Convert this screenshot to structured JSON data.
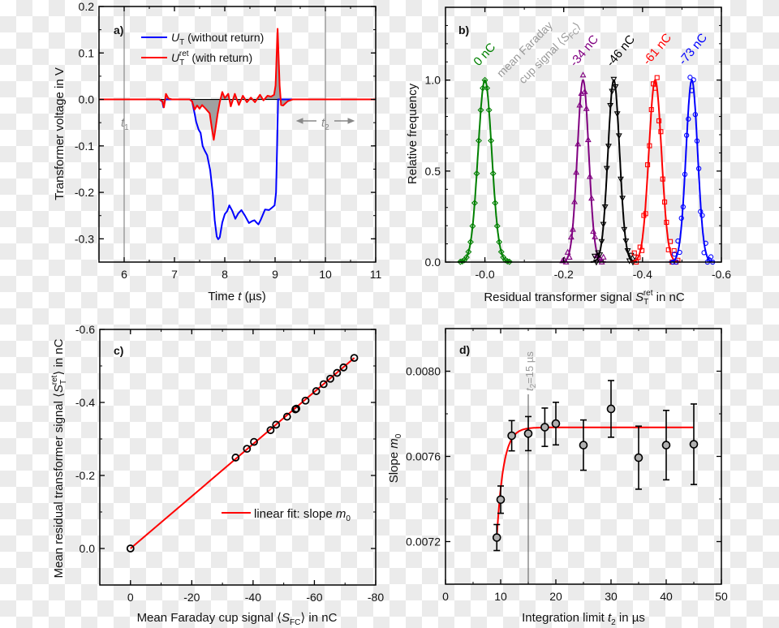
{
  "chart_data": [
    {
      "panel_label": "a)",
      "type": "line",
      "xlabel": {
        "pre": "Time ",
        "var": "t",
        "post": " (µs)"
      },
      "ylabel": "Transformer voltage in V",
      "xlim": [
        5.5,
        11
      ],
      "ylim": [
        -0.35,
        0.2
      ],
      "xticks": [
        6,
        7,
        8,
        9,
        10,
        11
      ],
      "xtick_labels": [
        "6",
        "7",
        "8",
        "9",
        "10",
        "11"
      ],
      "yticks": [
        -0.3,
        -0.2,
        -0.1,
        0.0,
        0.1,
        0.2
      ],
      "ytick_labels": [
        "-0.3",
        "-0.2",
        "-0.1",
        "0.0",
        "0.1",
        "0.2"
      ],
      "grid": false,
      "legend_position": "top-left",
      "series": [
        {
          "name": {
            "var": "U",
            "sub": "T",
            "sup": "",
            "text": " (without return)"
          },
          "color": "#0000ff",
          "x": [
            5.5,
            6.7,
            6.76,
            6.78,
            6.82,
            7.3,
            7.35,
            7.4,
            7.43,
            7.48,
            7.52,
            7.56,
            7.6,
            7.65,
            7.71,
            7.76,
            7.8,
            7.84,
            7.87,
            7.9,
            7.95,
            8.0,
            8.05,
            8.09,
            8.15,
            8.21,
            8.27,
            8.33,
            8.4,
            8.48,
            8.54,
            8.59,
            8.63,
            8.67,
            8.72,
            8.8,
            8.88,
            8.95,
            8.99,
            9.02,
            9.04,
            9.06,
            9.1,
            11
          ],
          "y": [
            0,
            0,
            -0.005,
            -0.017,
            0,
            0,
            -0.004,
            -0.03,
            -0.048,
            -0.065,
            -0.072,
            -0.1,
            -0.11,
            -0.12,
            -0.152,
            -0.2,
            -0.26,
            -0.295,
            -0.301,
            -0.297,
            -0.265,
            -0.247,
            -0.24,
            -0.228,
            -0.24,
            -0.257,
            -0.245,
            -0.238,
            -0.25,
            -0.266,
            -0.262,
            -0.26,
            -0.265,
            -0.269,
            -0.258,
            -0.237,
            -0.238,
            -0.232,
            -0.228,
            -0.2,
            -0.1,
            0,
            0,
            0
          ]
        },
        {
          "name": {
            "var": "U",
            "sub": "T",
            "sup": "ret",
            "text": " (with return)"
          },
          "color": "#ff0000",
          "x": [
            5.5,
            6.7,
            6.76,
            6.79,
            6.83,
            6.88,
            6.95,
            7.3,
            7.35,
            7.4,
            7.45,
            7.5,
            7.55,
            7.62,
            7.7,
            7.74,
            7.78,
            7.82,
            7.86,
            7.9,
            7.95,
            8.0,
            8.07,
            8.12,
            8.2,
            8.28,
            8.36,
            8.44,
            8.52,
            8.6,
            8.7,
            8.77,
            8.85,
            8.92,
            8.98,
            9.01,
            9.05,
            9.09,
            9.12,
            9.16,
            9.25,
            9.35,
            11
          ],
          "y": [
            0,
            0,
            -0.004,
            -0.017,
            0.012,
            0.002,
            0,
            0,
            -0.004,
            -0.022,
            -0.013,
            -0.02,
            -0.012,
            -0.02,
            -0.03,
            -0.06,
            -0.087,
            -0.06,
            -0.03,
            -0.006,
            0.016,
            0.003,
            0.012,
            -0.015,
            0.012,
            -0.012,
            0.008,
            -0.006,
            0.004,
            -0.006,
            0.01,
            -0.002,
            0.008,
            0.006,
            0.01,
            0.03,
            0.152,
            0.03,
            -0.012,
            -0.013,
            -0.004,
            0,
            0
          ]
        }
      ],
      "vertical_lines": [
        6,
        10
      ],
      "annotations": {
        "t1": {
          "var": "t",
          "sub": "1"
        },
        "t2": {
          "var": "t",
          "sub": "2"
        }
      },
      "fill_color": "#a0a0a0"
    },
    {
      "panel_label": "b)",
      "type": "scatter",
      "xlabel": {
        "pre": "Residual transformer signal ",
        "var": "S",
        "sub": "T",
        "sup": "ret",
        "post": " in nC"
      },
      "ylabel": "Relative frequency",
      "xlim": [
        0.1,
        -0.6
      ],
      "ylim": [
        0,
        1.4
      ],
      "xticks": [
        0.0,
        -0.2,
        -0.4,
        -0.6
      ],
      "xtick_labels": [
        "-0.0",
        "-0.2",
        "-0.4",
        "-0.6"
      ],
      "yticks": [
        0.0,
        0.5,
        1.0
      ],
      "ytick_labels": [
        "0.0",
        "0.5",
        "1.0"
      ],
      "grid": false,
      "series": [
        {
          "name": "0 nC",
          "color": "#008000",
          "marker": "diamond",
          "center": 0.0,
          "sigma": 0.0173,
          "amplitude": 1.0
        },
        {
          "name": "-34 nC",
          "color": "#800080",
          "marker": "triangle-up",
          "center": -0.249,
          "sigma": 0.0144,
          "amplitude": 1.0
        },
        {
          "name": "-46 nC",
          "color": "#000000",
          "marker": "triangle-down",
          "center": -0.327,
          "sigma": 0.0147,
          "amplitude": 1.0
        },
        {
          "name": "-61 nC",
          "color": "#ff0000",
          "marker": "square",
          "center": -0.432,
          "sigma": 0.016,
          "amplitude": 1.0
        },
        {
          "name": "-73 nC",
          "color": "#0000ff",
          "marker": "circle",
          "center": -0.525,
          "sigma": 0.0147,
          "amplitude": 1.0
        }
      ],
      "annotation": {
        "line1": "mean Faraday",
        "line2": "cup signal ",
        "var": "S",
        "sub": "FC",
        "lbr": "⟨",
        "rbr": "⟩"
      }
    },
    {
      "panel_label": "c)",
      "type": "scatter",
      "xlabel": {
        "pre": "Mean Faraday cup signal ⟨",
        "var": "S",
        "sub": "FC",
        "post": "⟩ in nC"
      },
      "ylabel": {
        "pre": "Mean residual transformer signal ⟨",
        "var": "S",
        "sub": "T",
        "sup": "ret",
        "post": "⟩ in nC"
      },
      "xlim": [
        10,
        -80
      ],
      "ylim": [
        0.1,
        -0.6
      ],
      "xticks": [
        0,
        -20,
        -40,
        -60,
        -80
      ],
      "xtick_labels": [
        "0",
        "-20",
        "-40",
        "-60",
        "-80"
      ],
      "yticks": [
        0.0,
        -0.2,
        -0.4,
        -0.6
      ],
      "ytick_labels": [
        "0.0",
        "-0.2",
        "-0.4",
        "-0.6"
      ],
      "grid": false,
      "legend_position": "bottom-right",
      "points": {
        "x": [
          0,
          -34.3,
          -38.0,
          -40.3,
          -45.7,
          -47.5,
          -51.1,
          -53.8,
          -54.1,
          -57.1,
          -60.6,
          -63.0,
          -65.2,
          -67.4,
          -69.5,
          -73.0
        ],
        "y": [
          0,
          -0.249,
          -0.273,
          -0.292,
          -0.324,
          -0.339,
          -0.361,
          -0.381,
          -0.383,
          -0.405,
          -0.431,
          -0.45,
          -0.465,
          -0.481,
          -0.496,
          -0.522
        ]
      },
      "fit": {
        "name": {
          "pre": "linear fit: slope ",
          "var": "m",
          "sub": "0"
        },
        "color": "#ff0000",
        "x": [
          0,
          -73.0
        ],
        "y": [
          0,
          -0.522
        ]
      }
    },
    {
      "panel_label": "d)",
      "type": "scatter",
      "xlabel": {
        "pre": "Integration limit ",
        "var": "t",
        "sub": "2",
        "post": " in µs"
      },
      "ylabel": {
        "pre": "Slope ",
        "var": "m",
        "sub": "0"
      },
      "xlim": [
        0,
        50
      ],
      "ylim": [
        0.007,
        0.0082
      ],
      "xticks": [
        0,
        10,
        20,
        30,
        40,
        50
      ],
      "xtick_labels": [
        "0",
        "10",
        "20",
        "30",
        "40",
        "50"
      ],
      "yticks": [
        0.0072,
        0.0076,
        0.008
      ],
      "ytick_labels": [
        "0.0072",
        "0.0076",
        "0.0080"
      ],
      "grid": false,
      "points": {
        "x": [
          9.3,
          10,
          12,
          15,
          18,
          20,
          25,
          30,
          35,
          40,
          45
        ],
        "y": [
          0.007219,
          0.007397,
          0.007697,
          0.007707,
          0.007737,
          0.007754,
          0.007653,
          0.007823,
          0.007594,
          0.007653,
          0.007657
        ],
        "yerr": [
          6.1e-05,
          6.4e-05,
          7.1e-05,
          8e-05,
          9e-05,
          0.0001,
          0.000118,
          0.000133,
          0.000148,
          0.000163,
          0.000189
        ]
      },
      "fit": {
        "color": "#ff0000",
        "type": "exponential saturation",
        "plateau": 0.007736,
        "x_start": 9.3,
        "y_start": 0.00722,
        "x_end": 45
      },
      "vertical_line": {
        "x": 15,
        "label": {
          "var": "t",
          "sub": "2",
          "text": "=15 µs"
        }
      }
    }
  ]
}
